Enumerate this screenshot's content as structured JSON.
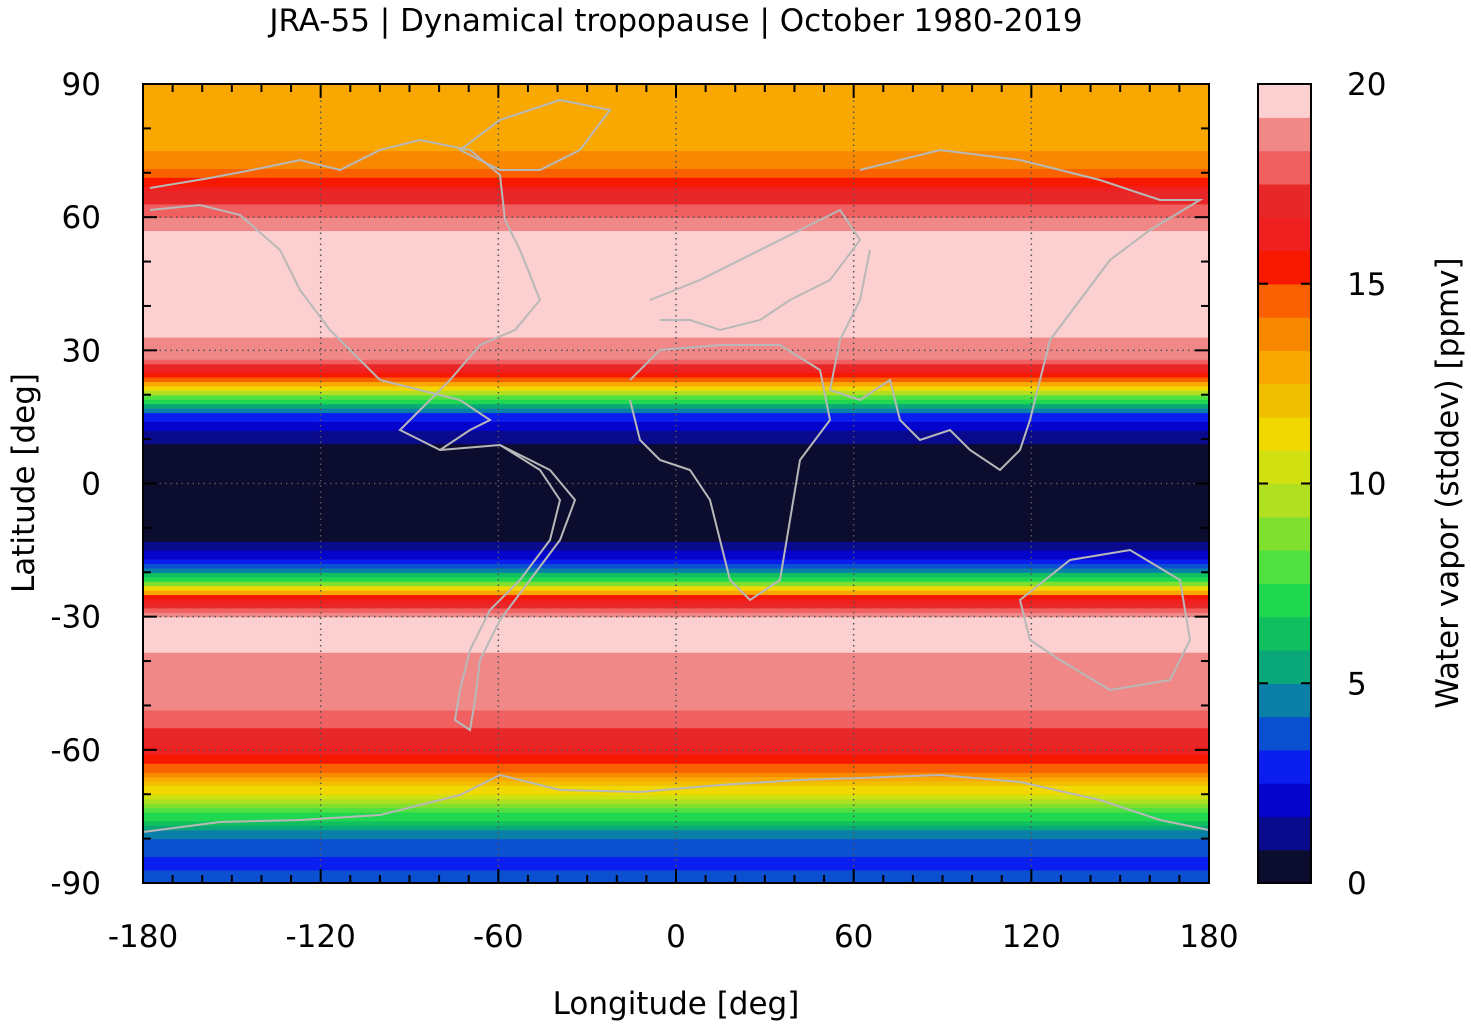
{
  "chart_data": {
    "type": "heatmap",
    "title": "JRA-55 | Dynamical tropopause | October 1980-2019",
    "xlabel": "Longitude [deg]",
    "ylabel": "Latitude [deg]",
    "colorbar_label": "Water vapor (stddev) [ppmv]",
    "xlim": [
      -180,
      180
    ],
    "ylim": [
      -90,
      90
    ],
    "x_ticks": [
      -180,
      -120,
      -60,
      0,
      60,
      120,
      180
    ],
    "y_ticks": [
      -90,
      -60,
      -30,
      0,
      30,
      60,
      90
    ],
    "x_tick_labels": [
      "-180",
      "-120",
      "-60",
      "0",
      "60",
      "120",
      "180"
    ],
    "y_tick_labels": [
      "-90",
      "-60",
      "-30",
      "0",
      "30",
      "60",
      "90"
    ],
    "colorbar_range": [
      0,
      20
    ],
    "colorbar_ticks": [
      0,
      5,
      10,
      15,
      20
    ],
    "colorbar_tick_labels": [
      "0",
      "5",
      "10",
      "15",
      "20"
    ],
    "grid": true,
    "coastlines": true,
    "colorbar_colors": [
      "#0c0c2e",
      "#0a0a8c",
      "#0404cc",
      "#0a1ef0",
      "#0a50d0",
      "#0a80a8",
      "#0aa878",
      "#10c060",
      "#20d850",
      "#50e040",
      "#80e030",
      "#b0e020",
      "#d0e010",
      "#f0d800",
      "#f0c000",
      "#f8a800",
      "#f88800",
      "#f86000",
      "#f81800",
      "#f02020",
      "#e82828",
      "#f06060",
      "#f08888",
      "#fcd0d0"
    ],
    "zonal_profile": [
      {
        "lat": -90,
        "value": 3.5
      },
      {
        "lat": -85,
        "value": 3.2
      },
      {
        "lat": -80,
        "value": 4.0
      },
      {
        "lat": -75,
        "value": 7.0
      },
      {
        "lat": -70,
        "value": 10.5
      },
      {
        "lat": -65,
        "value": 14.0
      },
      {
        "lat": -60,
        "value": 16.5
      },
      {
        "lat": -55,
        "value": 17.5
      },
      {
        "lat": -50,
        "value": 18.5
      },
      {
        "lat": -45,
        "value": 19.0
      },
      {
        "lat": -40,
        "value": 19.0
      },
      {
        "lat": -35,
        "value": 19.5
      },
      {
        "lat": -30,
        "value": 19.5
      },
      {
        "lat": -26,
        "value": 16.0
      },
      {
        "lat": -22,
        "value": 8.0
      },
      {
        "lat": -18,
        "value": 3.0
      },
      {
        "lat": -14,
        "value": 1.0
      },
      {
        "lat": -10,
        "value": 0.5
      },
      {
        "lat": 0,
        "value": 0.3
      },
      {
        "lat": 8,
        "value": 0.5
      },
      {
        "lat": 12,
        "value": 1.5
      },
      {
        "lat": 16,
        "value": 3.5
      },
      {
        "lat": 20,
        "value": 9.0
      },
      {
        "lat": 24,
        "value": 15.0
      },
      {
        "lat": 28,
        "value": 18.5
      },
      {
        "lat": 35,
        "value": 19.5
      },
      {
        "lat": 45,
        "value": 19.5
      },
      {
        "lat": 55,
        "value": 19.5
      },
      {
        "lat": 62,
        "value": 18.0
      },
      {
        "lat": 66,
        "value": 16.5
      },
      {
        "lat": 72,
        "value": 13.5
      },
      {
        "lat": 80,
        "value": 13.0
      },
      {
        "lat": 90,
        "value": 13.0
      }
    ]
  }
}
